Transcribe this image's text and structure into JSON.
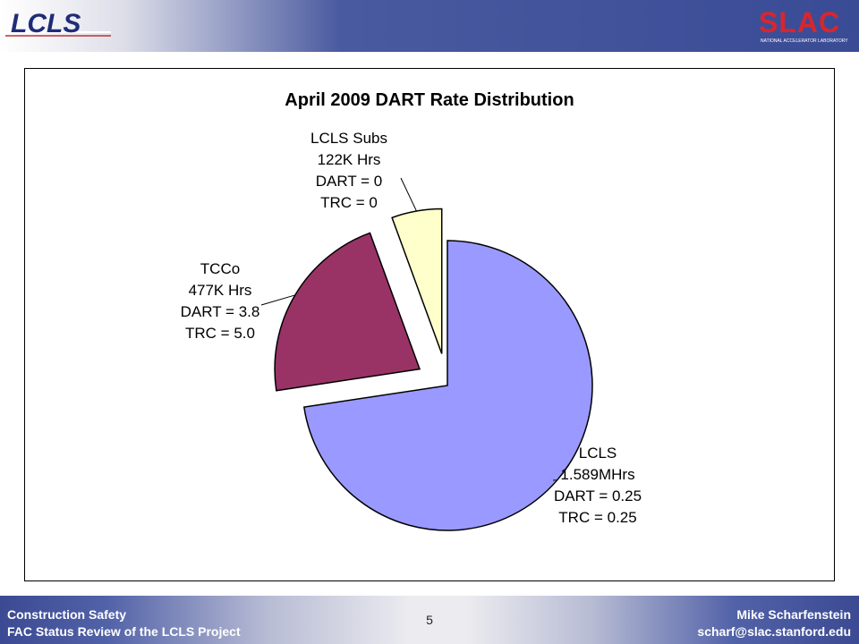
{
  "header": {
    "left_logo_text": "LCLS",
    "right_logo_text": "SLAC",
    "right_logo_subtext": "NATIONAL ACCELERATOR LABORATORY"
  },
  "footer": {
    "left_line1": "Construction Safety",
    "left_line2": "FAC Status Review of the LCLS Project",
    "page_number": "5",
    "right_line1": "Mike Scharfenstein",
    "right_line2": "scharf@slac.stanford.edu"
  },
  "colors": {
    "header_blue": "#3a4b96",
    "lcls_slice": "#9999ff",
    "tcco_slice": "#993366",
    "subs_slice": "#ffffcc"
  },
  "chart_data": {
    "type": "pie",
    "title": "April 2009 DART Rate Distribution",
    "slices": [
      {
        "name": "LCLS",
        "value": 1589,
        "unit": "K Hrs",
        "color": "#9999ff",
        "exploded": false,
        "label_lines": [
          "LCLS",
          "1.589MHrs",
          "DART = 0.25",
          "TRC = 0.25"
        ]
      },
      {
        "name": "TCCo",
        "value": 477,
        "unit": "K Hrs",
        "color": "#993366",
        "exploded": true,
        "label_lines": [
          "TCCo",
          "477K Hrs",
          "DART = 3.8",
          "TRC = 5.0"
        ]
      },
      {
        "name": "LCLS Subs",
        "value": 122,
        "unit": "K Hrs",
        "color": "#ffffcc",
        "exploded": true,
        "label_lines": [
          "LCLS Subs",
          "122K Hrs",
          "DART = 0",
          "TRC = 0"
        ]
      }
    ]
  }
}
